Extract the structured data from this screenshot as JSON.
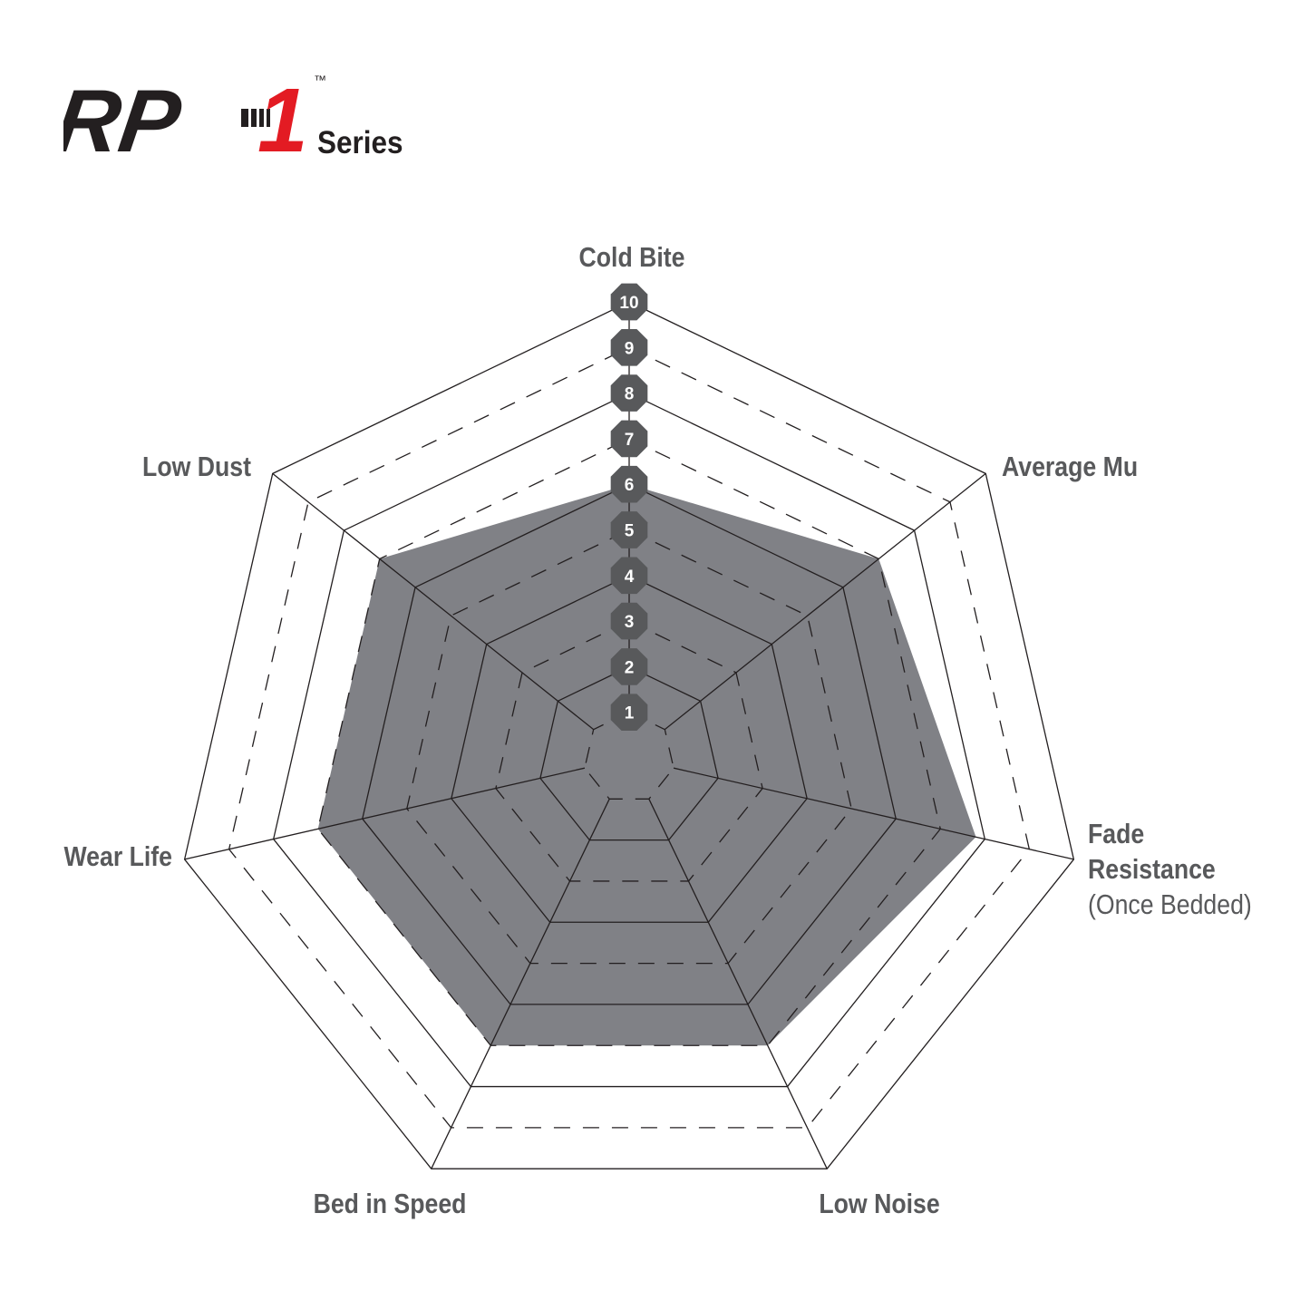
{
  "logo": {
    "text": "RP-1",
    "tm": "™",
    "series": "Series",
    "colors": {
      "dark": "#231f20",
      "red": "#e31b23"
    }
  },
  "chart_data": {
    "type": "radar",
    "title": "",
    "axes": [
      {
        "label": [
          "Cold Bite"
        ]
      },
      {
        "label": [
          "Average Mu"
        ]
      },
      {
        "label": [
          "Fade",
          "Resistance",
          "(Once Bedded)"
        ]
      },
      {
        "label": [
          "Low Noise"
        ]
      },
      {
        "label": [
          "Bed in Speed"
        ]
      },
      {
        "label": [
          "Wear Life"
        ]
      },
      {
        "label": [
          "Low Dust"
        ]
      }
    ],
    "values": [
      6,
      7,
      7.8,
      7,
      7,
      7,
      7
    ],
    "range": [
      0,
      10
    ],
    "ticks": [
      "1",
      "2",
      "3",
      "4",
      "5",
      "6",
      "7",
      "8",
      "9",
      "10"
    ],
    "colors": {
      "fill": "#808186",
      "badge": "#58595b",
      "label": "#58595b",
      "grid": "#231f20"
    }
  }
}
